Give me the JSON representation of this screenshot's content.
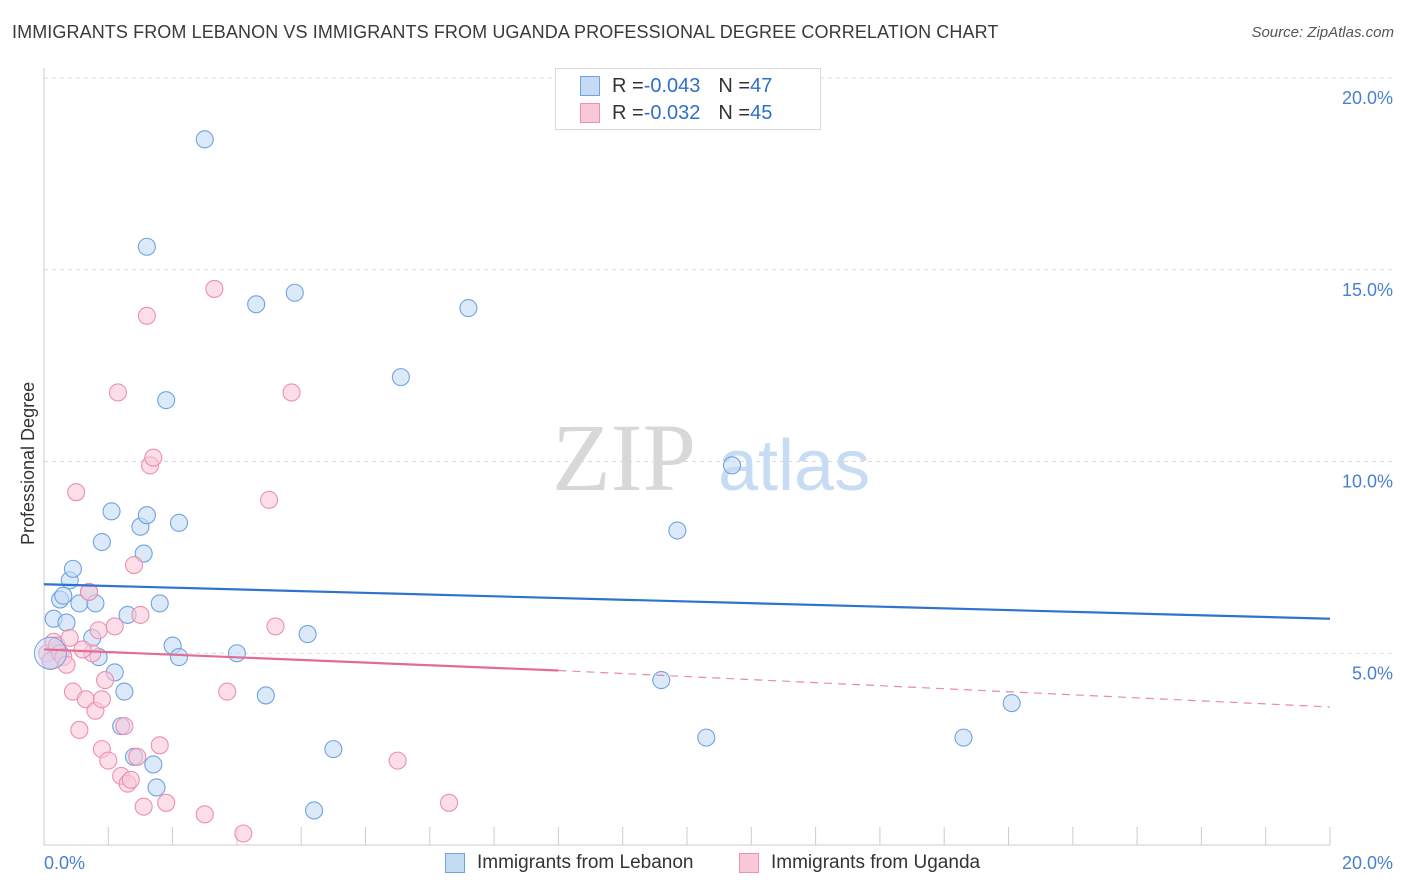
{
  "chart_data": {
    "type": "scatter",
    "title": "IMMIGRANTS FROM LEBANON VS IMMIGRANTS FROM UGANDA PROFESSIONAL DEGREE CORRELATION CHART",
    "source": "Source: ZipAtlas.com",
    "xlabel": "",
    "ylabel": "Professional Degree",
    "xlim": [
      0,
      20
    ],
    "ylim": [
      0,
      20
    ],
    "x_tick_labels": [
      {
        "value": 0,
        "label": "0.0%"
      },
      {
        "value": 20,
        "label": "20.0%"
      }
    ],
    "y_tick_labels": [
      {
        "value": 5,
        "label": "5.0%"
      },
      {
        "value": 10,
        "label": "10.0%"
      },
      {
        "value": 15,
        "label": "15.0%"
      },
      {
        "value": 20,
        "label": "20.0%"
      }
    ],
    "grid": true,
    "watermark": {
      "zip": "ZIP",
      "atlas": "atlas"
    },
    "legend": {
      "position": "top-center",
      "entries": [
        {
          "r_label": "R = ",
          "r_value": "-0.043",
          "n_label": "N = ",
          "n_value": "47"
        },
        {
          "r_label": "R = ",
          "r_value": "-0.032",
          "n_label": "N = ",
          "n_value": "45"
        }
      ]
    },
    "series": [
      {
        "name": "Immigrants from Lebanon",
        "color": "#6fa3e0",
        "fill": "#c5daf3",
        "line_color": "#2f73cc",
        "trend": {
          "x0": 0,
          "y0": 6.8,
          "x1": 20,
          "y1": 5.9
        },
        "points": [
          [
            0.1,
            4.8
          ],
          [
            0.15,
            5.9
          ],
          [
            0.2,
            5.1
          ],
          [
            0.25,
            6.4
          ],
          [
            0.35,
            5.8
          ],
          [
            0.4,
            6.9
          ],
          [
            0.45,
            7.2
          ],
          [
            0.55,
            6.3
          ],
          [
            0.7,
            6.6
          ],
          [
            0.75,
            5.4
          ],
          [
            0.8,
            6.3
          ],
          [
            0.85,
            4.9
          ],
          [
            0.9,
            7.9
          ],
          [
            1.05,
            8.7
          ],
          [
            1.1,
            4.5
          ],
          [
            1.2,
            3.1
          ],
          [
            1.25,
            4.0
          ],
          [
            1.3,
            6.0
          ],
          [
            1.4,
            2.3
          ],
          [
            1.5,
            8.3
          ],
          [
            1.55,
            7.6
          ],
          [
            1.6,
            8.6
          ],
          [
            1.6,
            15.6
          ],
          [
            1.7,
            2.1
          ],
          [
            1.75,
            1.5
          ],
          [
            1.8,
            6.3
          ],
          [
            1.9,
            11.6
          ],
          [
            2.0,
            5.2
          ],
          [
            2.1,
            4.9
          ],
          [
            2.1,
            8.4
          ],
          [
            2.5,
            18.4
          ],
          [
            3.0,
            5.0
          ],
          [
            3.3,
            14.1
          ],
          [
            3.45,
            3.9
          ],
          [
            3.9,
            14.4
          ],
          [
            4.1,
            5.5
          ],
          [
            4.2,
            0.9
          ],
          [
            4.5,
            2.5
          ],
          [
            5.55,
            12.2
          ],
          [
            6.6,
            14.0
          ],
          [
            9.6,
            4.3
          ],
          [
            9.85,
            8.2
          ],
          [
            10.3,
            2.8
          ],
          [
            10.7,
            9.9
          ],
          [
            14.3,
            2.8
          ],
          [
            15.05,
            3.7
          ],
          [
            0.3,
            6.5
          ]
        ]
      },
      {
        "name": "Immigrants from Uganda",
        "color": "#ee8fb0",
        "fill": "#f8c8d8",
        "line_color": "#e56b97",
        "trend": {
          "x0": 0,
          "y0": 5.1,
          "x1": 8.0,
          "y1": 4.55
        },
        "trend_dashed": {
          "x0": 8.0,
          "y0": 4.55,
          "x1": 20,
          "y1": 3.6
        },
        "points": [
          [
            0.05,
            5.0
          ],
          [
            0.1,
            4.8
          ],
          [
            0.15,
            5.3
          ],
          [
            0.2,
            5.2
          ],
          [
            0.25,
            5.0
          ],
          [
            0.3,
            4.9
          ],
          [
            0.35,
            4.7
          ],
          [
            0.45,
            4.0
          ],
          [
            0.5,
            9.2
          ],
          [
            0.55,
            3.0
          ],
          [
            0.65,
            3.8
          ],
          [
            0.7,
            6.6
          ],
          [
            0.75,
            5.0
          ],
          [
            0.8,
            3.5
          ],
          [
            0.85,
            5.6
          ],
          [
            0.9,
            3.8
          ],
          [
            0.9,
            2.5
          ],
          [
            0.95,
            4.3
          ],
          [
            1.0,
            2.2
          ],
          [
            1.1,
            5.7
          ],
          [
            1.15,
            11.8
          ],
          [
            1.2,
            1.8
          ],
          [
            1.25,
            3.1
          ],
          [
            1.3,
            1.6
          ],
          [
            1.35,
            1.7
          ],
          [
            1.4,
            7.3
          ],
          [
            1.45,
            2.3
          ],
          [
            1.5,
            6.0
          ],
          [
            1.55,
            1.0
          ],
          [
            1.6,
            13.8
          ],
          [
            1.65,
            9.9
          ],
          [
            1.7,
            10.1
          ],
          [
            1.8,
            2.6
          ],
          [
            1.9,
            1.1
          ],
          [
            2.5,
            0.8
          ],
          [
            2.65,
            14.5
          ],
          [
            2.85,
            4.0
          ],
          [
            3.1,
            0.3
          ],
          [
            3.5,
            9.0
          ],
          [
            3.6,
            5.7
          ],
          [
            3.85,
            11.8
          ],
          [
            5.5,
            2.2
          ],
          [
            6.3,
            1.1
          ],
          [
            0.6,
            5.1
          ],
          [
            0.4,
            5.4
          ]
        ]
      }
    ]
  }
}
